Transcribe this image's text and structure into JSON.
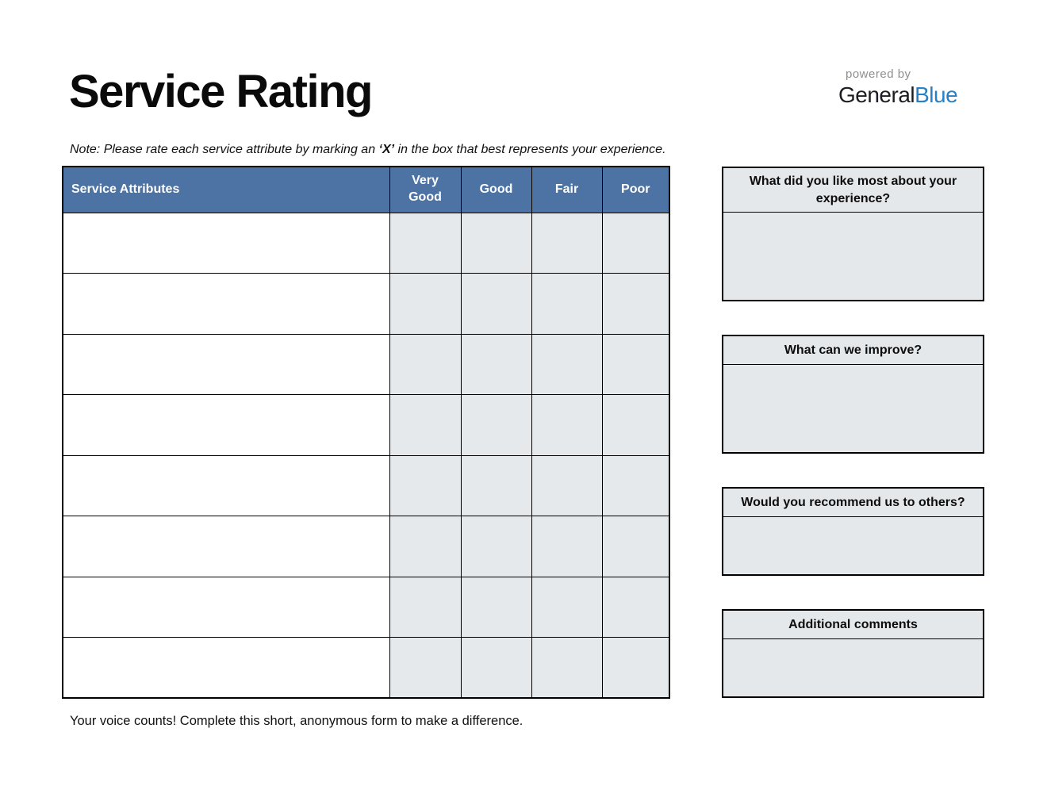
{
  "page": {
    "title": "Service Rating",
    "note_prefix": "Note: Please rate each service attribute by marking an ",
    "note_x": "‘X’",
    "note_suffix": " in the box that best represents your experience.",
    "footer": "Your voice counts! Complete this short, anonymous form to make a difference."
  },
  "logo": {
    "powered_by": "powered by",
    "brand_general": "General",
    "brand_blue": "Blue"
  },
  "colors": {
    "header_blue": "#4C73A3",
    "cell_gray": "#E6E9EC",
    "panel_gray": "#E5E8EB",
    "border_black": "#000000",
    "logo_blue": "#2980C4",
    "logo_dark": "#1C1C24",
    "powered_gray": "#8F8F8F"
  },
  "table": {
    "columns": [
      {
        "label": "Service Attributes"
      },
      {
        "label": "Very Good"
      },
      {
        "label": "Good"
      },
      {
        "label": "Fair"
      },
      {
        "label": "Poor"
      }
    ],
    "row_count": 8
  },
  "feedback_boxes": [
    {
      "label": "What did you like most about your experience?"
    },
    {
      "label": "What can we improve?"
    },
    {
      "label": "Would you recommend us to others?"
    },
    {
      "label": "Additional comments"
    }
  ]
}
